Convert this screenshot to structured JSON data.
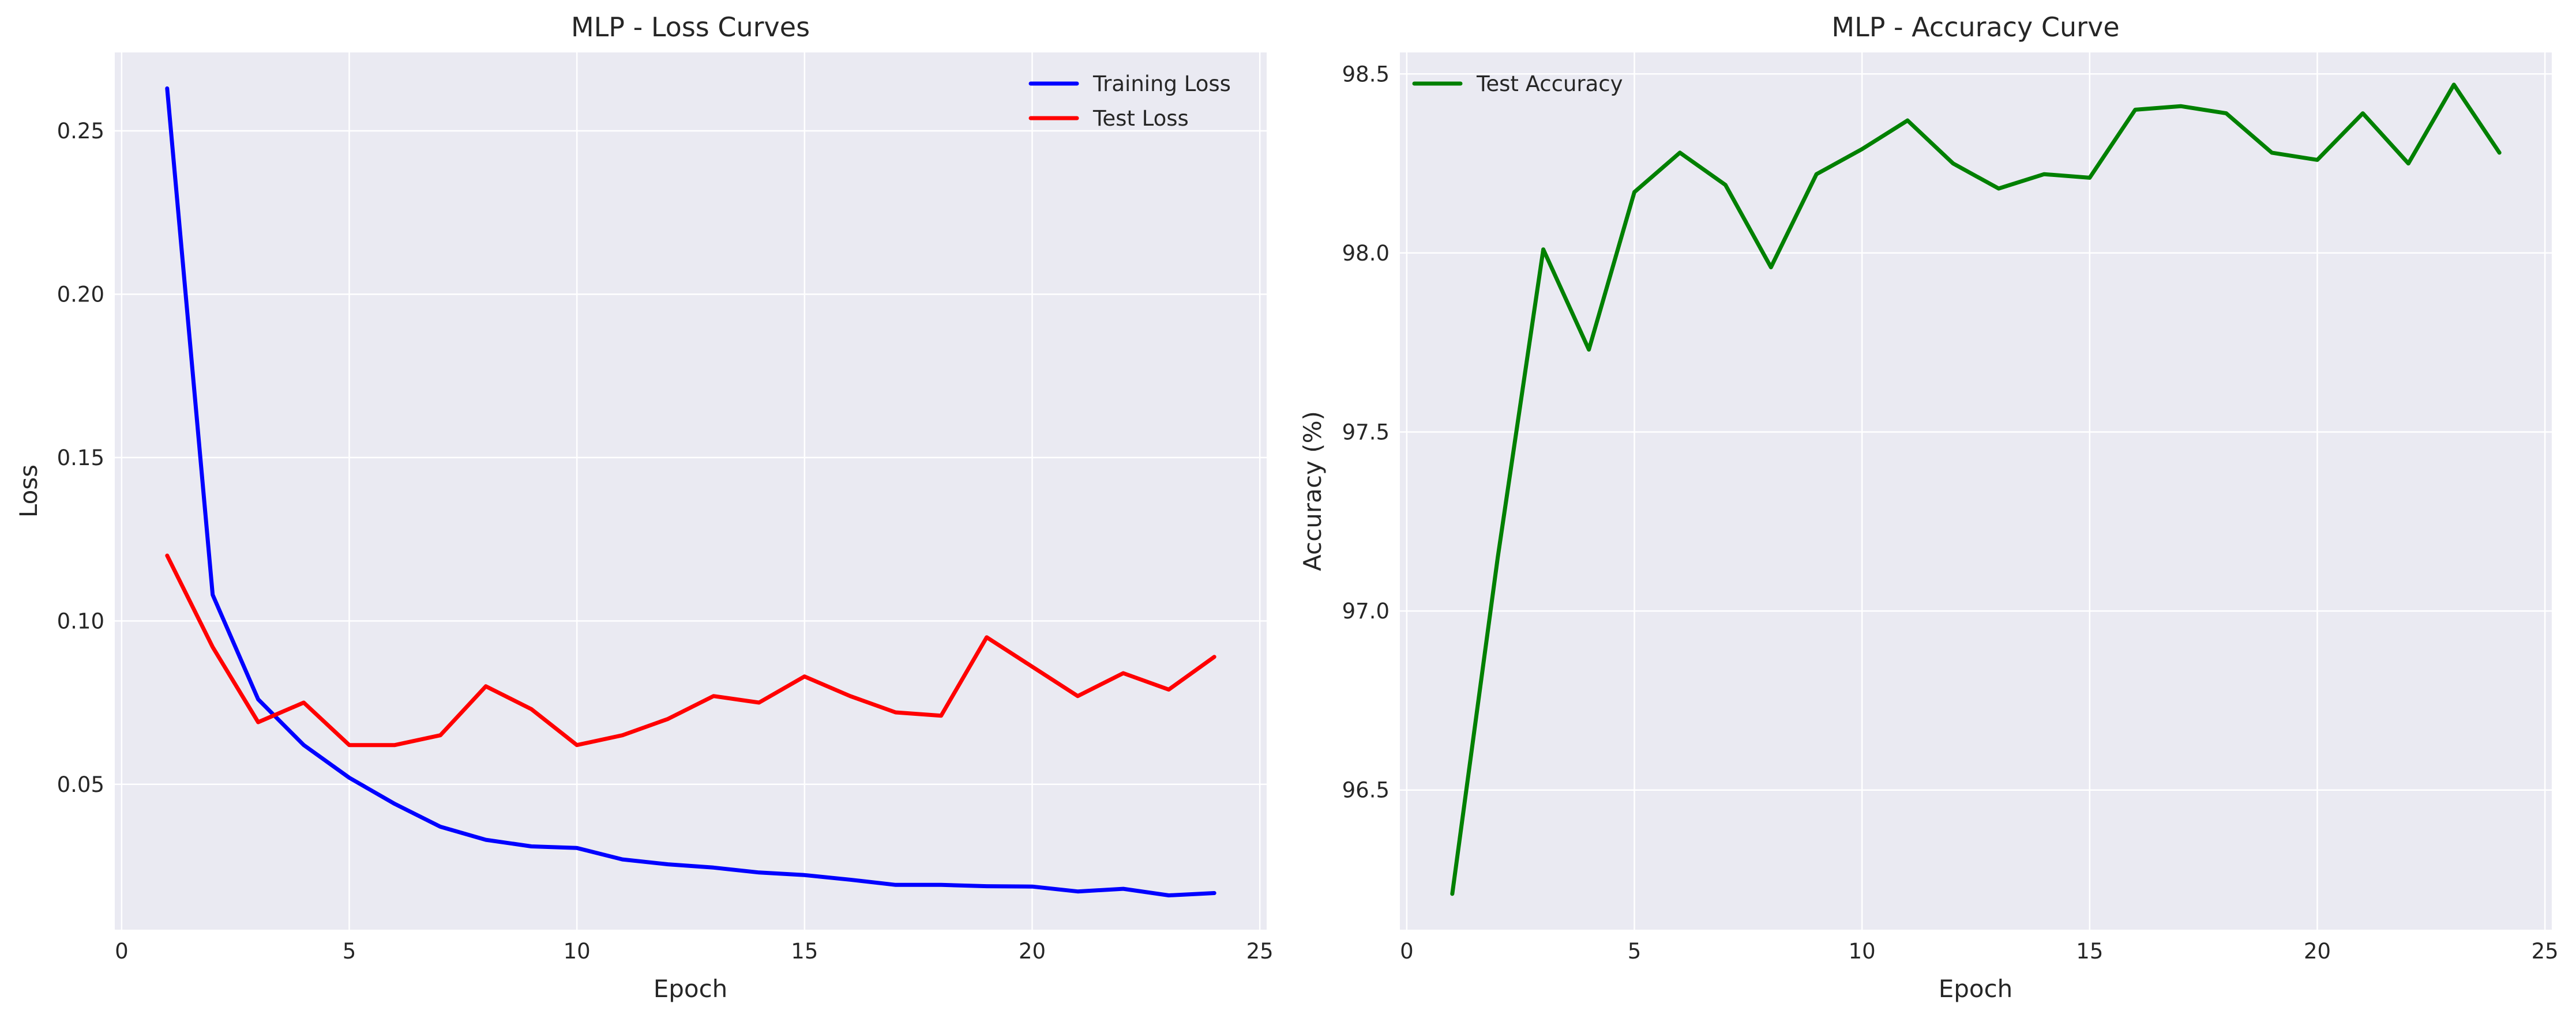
{
  "chart_data": [
    {
      "type": "line",
      "title": "MLP - Loss Curves",
      "xlabel": "Epoch",
      "ylabel": "Loss",
      "xlim": [
        -0.15,
        25.15
      ],
      "ylim": [
        0.0055,
        0.274
      ],
      "xticks": [
        0,
        5,
        10,
        15,
        20,
        25
      ],
      "yticks": [
        0.05,
        0.1,
        0.15,
        0.2,
        0.25
      ],
      "ytick_format": 2,
      "grid": true,
      "legend_position": "top-right",
      "x": [
        1,
        2,
        3,
        4,
        5,
        6,
        7,
        8,
        9,
        10,
        11,
        12,
        13,
        14,
        15,
        16,
        17,
        18,
        19,
        20,
        21,
        22,
        23,
        24
      ],
      "series": [
        {
          "name": "Training Loss",
          "color": "#0000ff",
          "values": [
            0.263,
            0.108,
            0.076,
            0.062,
            0.052,
            0.044,
            0.037,
            0.033,
            0.031,
            0.0305,
            0.027,
            0.0255,
            0.0245,
            0.023,
            0.0222,
            0.0208,
            0.0192,
            0.0192,
            0.0188,
            0.0187,
            0.0172,
            0.018,
            0.016,
            0.0167
          ]
        },
        {
          "name": "Test Loss",
          "color": "#ff0000",
          "values": [
            0.12,
            0.092,
            0.069,
            0.075,
            0.062,
            0.062,
            0.065,
            0.08,
            0.073,
            0.062,
            0.065,
            0.07,
            0.077,
            0.075,
            0.083,
            0.077,
            0.072,
            0.071,
            0.095,
            0.086,
            0.077,
            0.084,
            0.079,
            0.089
          ]
        }
      ]
    },
    {
      "type": "line",
      "title": "MLP - Accuracy Curve",
      "xlabel": "Epoch",
      "ylabel": "Accuracy (%)",
      "xlim": [
        -0.15,
        25.15
      ],
      "ylim": [
        96.11,
        98.56
      ],
      "xticks": [
        0,
        5,
        10,
        15,
        20,
        25
      ],
      "yticks": [
        96.5,
        97.0,
        97.5,
        98.0,
        98.5
      ],
      "ytick_format": 1,
      "grid": true,
      "legend_position": "top-left",
      "x": [
        1,
        2,
        3,
        4,
        5,
        6,
        7,
        8,
        9,
        10,
        11,
        12,
        13,
        14,
        15,
        16,
        17,
        18,
        19,
        20,
        21,
        22,
        23,
        24
      ],
      "series": [
        {
          "name": "Test Accuracy",
          "color": "#008000",
          "values": [
            96.21,
            97.15,
            98.01,
            97.73,
            98.17,
            98.28,
            98.19,
            97.96,
            98.22,
            98.29,
            98.37,
            98.25,
            98.18,
            98.22,
            98.21,
            98.4,
            98.41,
            98.39,
            98.28,
            98.26,
            98.39,
            98.25,
            98.47,
            98.28
          ]
        }
      ]
    }
  ]
}
